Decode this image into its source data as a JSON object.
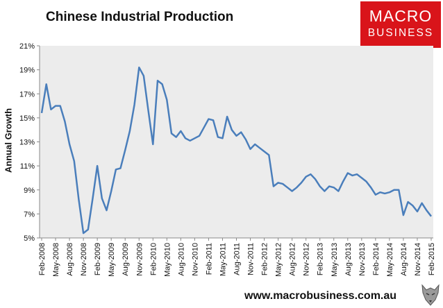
{
  "header": {
    "title": "Chinese Industrial Production",
    "logo_line1": "MACRO",
    "logo_line2": "BUSINESS",
    "brand_color": "#d9141a"
  },
  "footer": {
    "url": "www.macrobusiness.com.au",
    "icon": "wolf-icon"
  },
  "chart_data": {
    "type": "line",
    "title": "Chinese Industrial Production",
    "ylabel": "Annual Growth",
    "xlabel": "",
    "ylim": [
      5,
      21
    ],
    "yticks": [
      "5%",
      "7%",
      "9%",
      "11%",
      "13%",
      "15%",
      "17%",
      "19%",
      "21%"
    ],
    "grid": false,
    "plot_background": "#ececec",
    "line_color": "#4a7ebb",
    "xticks": [
      "Feb-2008",
      "May-2008",
      "Aug-2008",
      "Nov-2008",
      "Feb-2009",
      "May-2009",
      "Aug-2009",
      "Nov-2009",
      "Feb-2010",
      "May-2010",
      "Aug-2010",
      "Nov-2010",
      "Feb-2011",
      "May-2011",
      "Aug-2011",
      "Nov-2011",
      "Feb-2012",
      "May-2012",
      "Aug-2012",
      "Nov-2012",
      "Feb-2013",
      "May-2013",
      "Aug-2013",
      "Nov-2013",
      "Feb-2014",
      "May-2014",
      "Aug-2014",
      "Nov-2014",
      "Feb-2015"
    ],
    "x_start": "Feb-2008",
    "x_end": "Feb-2015",
    "values": [
      15.4,
      17.8,
      15.7,
      16.0,
      16.0,
      14.7,
      12.8,
      11.4,
      8.2,
      5.4,
      5.7,
      8.3,
      11.0,
      8.3,
      7.3,
      8.9,
      10.7,
      10.8,
      12.3,
      13.9,
      16.1,
      19.2,
      18.5,
      15.6,
      12.8,
      18.1,
      17.8,
      16.5,
      13.7,
      13.4,
      13.9,
      13.3,
      13.1,
      13.3,
      13.5,
      14.2,
      14.9,
      14.8,
      13.4,
      13.3,
      15.1,
      14.0,
      13.5,
      13.8,
      13.2,
      12.4,
      12.8,
      12.5,
      12.2,
      11.9,
      9.3,
      9.6,
      9.5,
      9.2,
      8.9,
      9.2,
      9.6,
      10.1,
      10.3,
      9.9,
      9.3,
      8.9,
      9.3,
      9.2,
      8.9,
      9.7,
      10.4,
      10.2,
      10.3,
      10.0,
      9.7,
      9.2,
      8.6,
      8.8,
      8.7,
      8.8,
      9.0,
      9.0,
      6.9,
      8.0,
      7.7,
      7.2,
      7.9,
      7.3,
      6.8
    ]
  }
}
